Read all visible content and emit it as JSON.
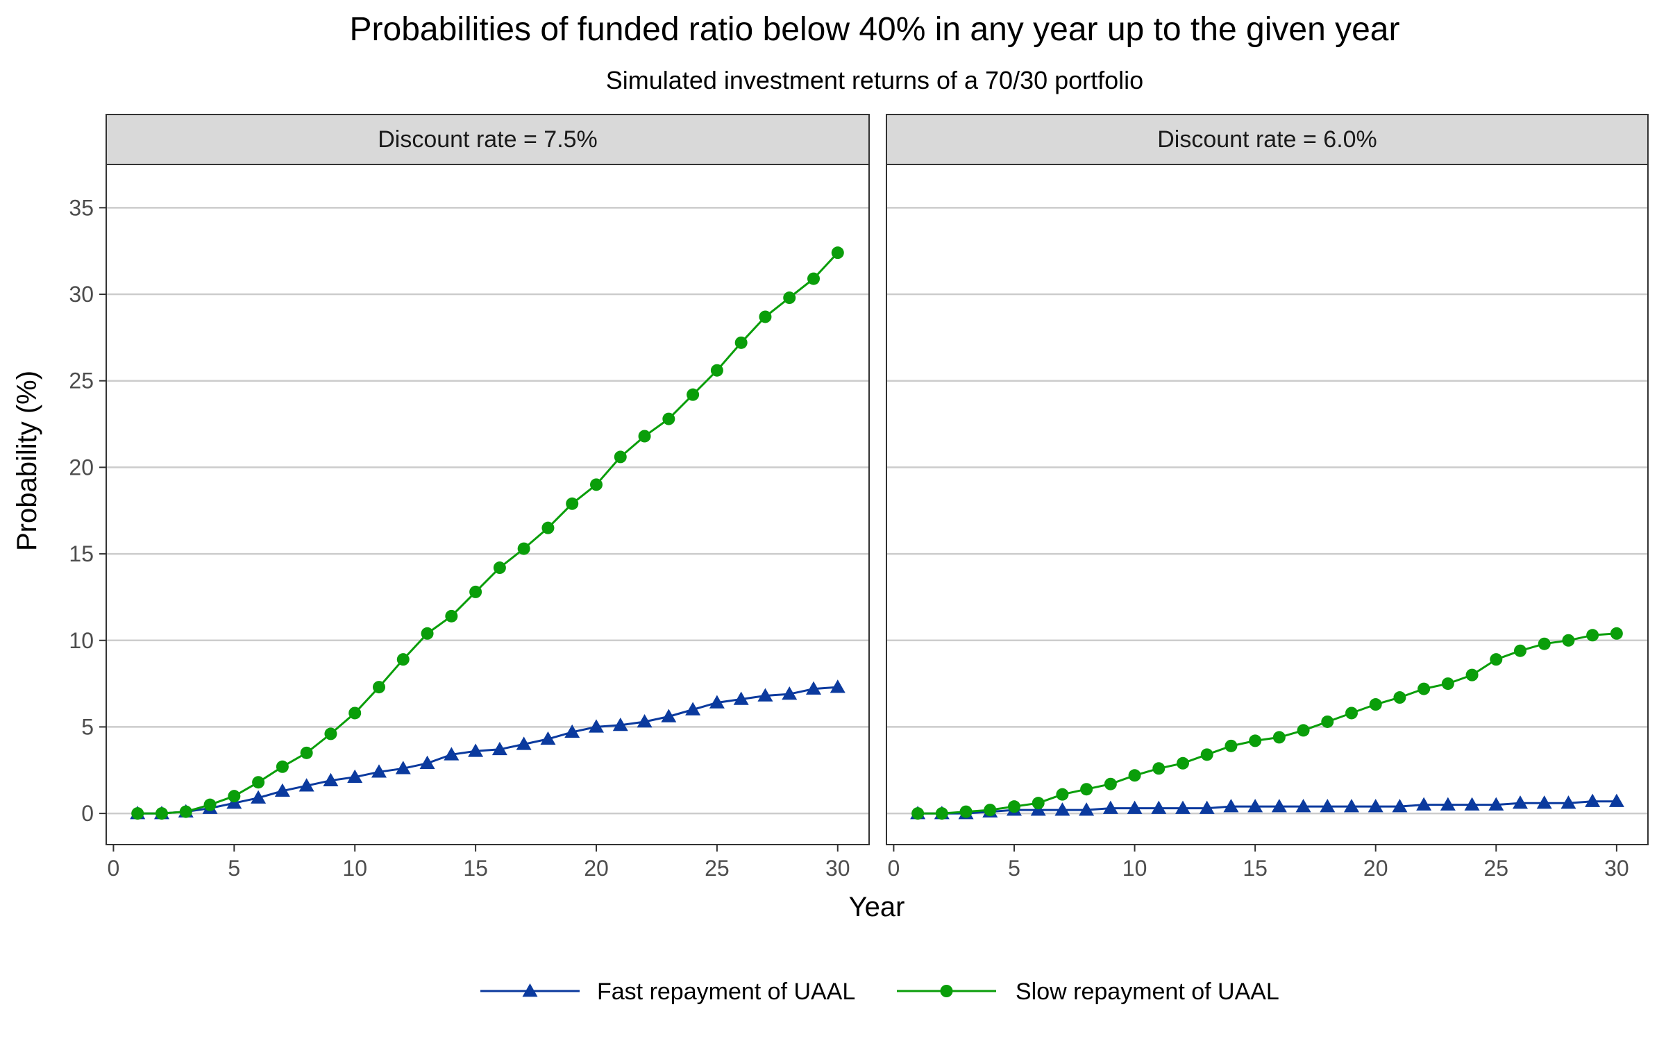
{
  "chart_data": {
    "type": "line",
    "title": "Probabilities of funded ratio below 40% in any year up to the given year",
    "subtitle": "Simulated investment returns of a 70/30 portfolio",
    "xlabel": "Year",
    "ylabel": "Probability (%)",
    "xlim": [
      -0.3,
      31.3
    ],
    "ylim": [
      -1.8,
      37.5
    ],
    "x_ticks": [
      0,
      5,
      10,
      15,
      20,
      25,
      30
    ],
    "y_ticks": [
      0,
      5,
      10,
      15,
      20,
      25,
      30,
      35
    ],
    "grid": "horizontal",
    "legend_position": "bottom",
    "colors": {
      "fast": "#0B3A9E",
      "slow": "#0A9E0A",
      "strip": "#d9d9d9",
      "grid": "#cccccc"
    },
    "legend": [
      {
        "key": "fast",
        "label": "Fast repayment of UAAL",
        "marker": "triangle"
      },
      {
        "key": "slow",
        "label": "Slow repayment of UAAL",
        "marker": "circle"
      }
    ],
    "x": [
      1,
      2,
      3,
      4,
      5,
      6,
      7,
      8,
      9,
      10,
      11,
      12,
      13,
      14,
      15,
      16,
      17,
      18,
      19,
      20,
      21,
      22,
      23,
      24,
      25,
      26,
      27,
      28,
      29,
      30
    ],
    "panels": [
      {
        "strip_label": "Discount rate = 7.5%",
        "series": [
          {
            "key": "fast",
            "name": "Fast repayment of UAAL",
            "values": [
              0.0,
              0.0,
              0.1,
              0.3,
              0.6,
              0.9,
              1.3,
              1.6,
              1.9,
              2.1,
              2.4,
              2.6,
              2.9,
              3.4,
              3.6,
              3.7,
              4.0,
              4.3,
              4.7,
              5.0,
              5.1,
              5.3,
              5.6,
              6.0,
              6.4,
              6.6,
              6.8,
              6.9,
              7.2,
              7.3
            ]
          },
          {
            "key": "slow",
            "name": "Slow repayment of UAAL",
            "values": [
              0.0,
              0.0,
              0.1,
              0.5,
              1.0,
              1.8,
              2.7,
              3.5,
              4.6,
              5.8,
              7.3,
              8.9,
              10.4,
              11.4,
              12.8,
              14.2,
              15.3,
              16.5,
              17.9,
              19.0,
              20.6,
              21.8,
              22.8,
              24.2,
              25.6,
              27.2,
              28.7,
              29.8,
              30.9,
              32.4
            ]
          }
        ]
      },
      {
        "strip_label": "Discount rate = 6.0%",
        "series": [
          {
            "key": "fast",
            "name": "Fast repayment of UAAL",
            "values": [
              0.0,
              0.0,
              0.0,
              0.1,
              0.2,
              0.2,
              0.2,
              0.2,
              0.3,
              0.3,
              0.3,
              0.3,
              0.3,
              0.4,
              0.4,
              0.4,
              0.4,
              0.4,
              0.4,
              0.4,
              0.4,
              0.5,
              0.5,
              0.5,
              0.5,
              0.6,
              0.6,
              0.6,
              0.7,
              0.7
            ]
          },
          {
            "key": "slow",
            "name": "Slow repayment of UAAL",
            "values": [
              0.0,
              0.0,
              0.1,
              0.2,
              0.4,
              0.6,
              1.1,
              1.4,
              1.7,
              2.2,
              2.6,
              2.9,
              3.4,
              3.9,
              4.2,
              4.4,
              4.8,
              5.3,
              5.8,
              6.3,
              6.7,
              7.2,
              7.5,
              8.0,
              8.9,
              9.4,
              9.8,
              10.0,
              10.3,
              10.4
            ]
          }
        ]
      }
    ]
  }
}
